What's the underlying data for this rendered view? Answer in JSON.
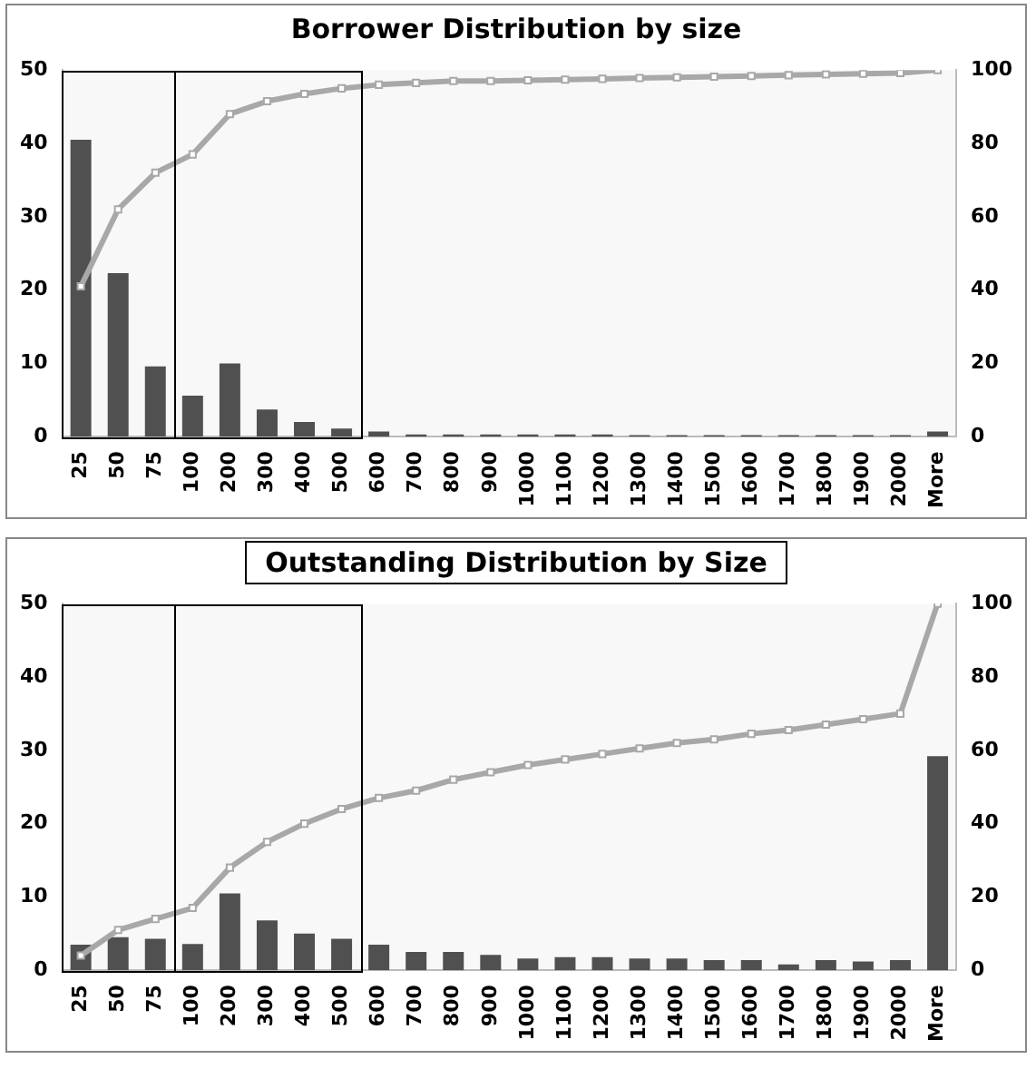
{
  "chart_data": [
    {
      "type": "bar",
      "title": "Borrower Distribution by size",
      "categories": [
        "25",
        "50",
        "75",
        "100",
        "200",
        "300",
        "400",
        "500",
        "600",
        "700",
        "800",
        "900",
        "1000",
        "1100",
        "1200",
        "1300",
        "1400",
        "1500",
        "1600",
        "1700",
        "1800",
        "1900",
        "2000",
        "More"
      ],
      "series": [
        {
          "color": "#505050",
          "values": [
            40.5,
            22.3,
            9.6,
            5.6,
            10,
            3.7,
            2,
            1.1,
            0.7,
            0.3,
            0.3,
            0.3,
            0.3,
            0.3,
            0.3,
            0.2,
            0.2,
            0.2,
            0.2,
            0.2,
            0.2,
            0.2,
            0.2,
            0.7
          ]
        },
        {
          "type": "line",
          "axis": "y2",
          "color": "#a8a8a8",
          "values": [
            41,
            62,
            72,
            77,
            88,
            91.5,
            93.5,
            95,
            96,
            96.5,
            97,
            97,
            97.2,
            97.4,
            97.6,
            97.8,
            98,
            98.2,
            98.4,
            98.6,
            98.8,
            99,
            99.2,
            100
          ]
        }
      ],
      "ylim": [
        0,
        50
      ],
      "yticks": [
        0,
        10,
        20,
        30,
        40,
        50
      ],
      "y2lim": [
        0,
        100
      ],
      "y2ticks": [
        0,
        20,
        40,
        60,
        80,
        100
      ],
      "grid": false,
      "legend": false,
      "marker": "square"
    },
    {
      "type": "bar",
      "title": "Outstanding Distribution by Size",
      "categories": [
        "25",
        "50",
        "75",
        "100",
        "200",
        "300",
        "400",
        "500",
        "600",
        "700",
        "800",
        "900",
        "1000",
        "1100",
        "1200",
        "1300",
        "1400",
        "1500",
        "1600",
        "1700",
        "1800",
        "1900",
        "2000",
        "More"
      ],
      "series": [
        {
          "color": "#505050",
          "values": [
            3.5,
            4.5,
            4.3,
            3.6,
            10.5,
            6.8,
            5,
            4.3,
            3.5,
            2.5,
            2.5,
            2.1,
            1.6,
            1.8,
            1.8,
            1.6,
            1.6,
            1.4,
            1.4,
            0.8,
            1.4,
            1.2,
            1.4,
            29.2
          ]
        },
        {
          "type": "line",
          "axis": "y2",
          "color": "#a8a8a8",
          "values": [
            4,
            11,
            14,
            17,
            28,
            35,
            40,
            44,
            47,
            49,
            52,
            54,
            56,
            57.5,
            59,
            60.5,
            62,
            63,
            64.5,
            65.5,
            67,
            68.5,
            70,
            100
          ]
        }
      ],
      "ylim": [
        0,
        50
      ],
      "yticks": [
        0,
        10,
        20,
        30,
        40,
        50
      ],
      "y2lim": [
        0,
        100
      ],
      "y2ticks": [
        0,
        20,
        40,
        60,
        80,
        100
      ],
      "grid": false,
      "legend": false,
      "marker": "square"
    }
  ]
}
